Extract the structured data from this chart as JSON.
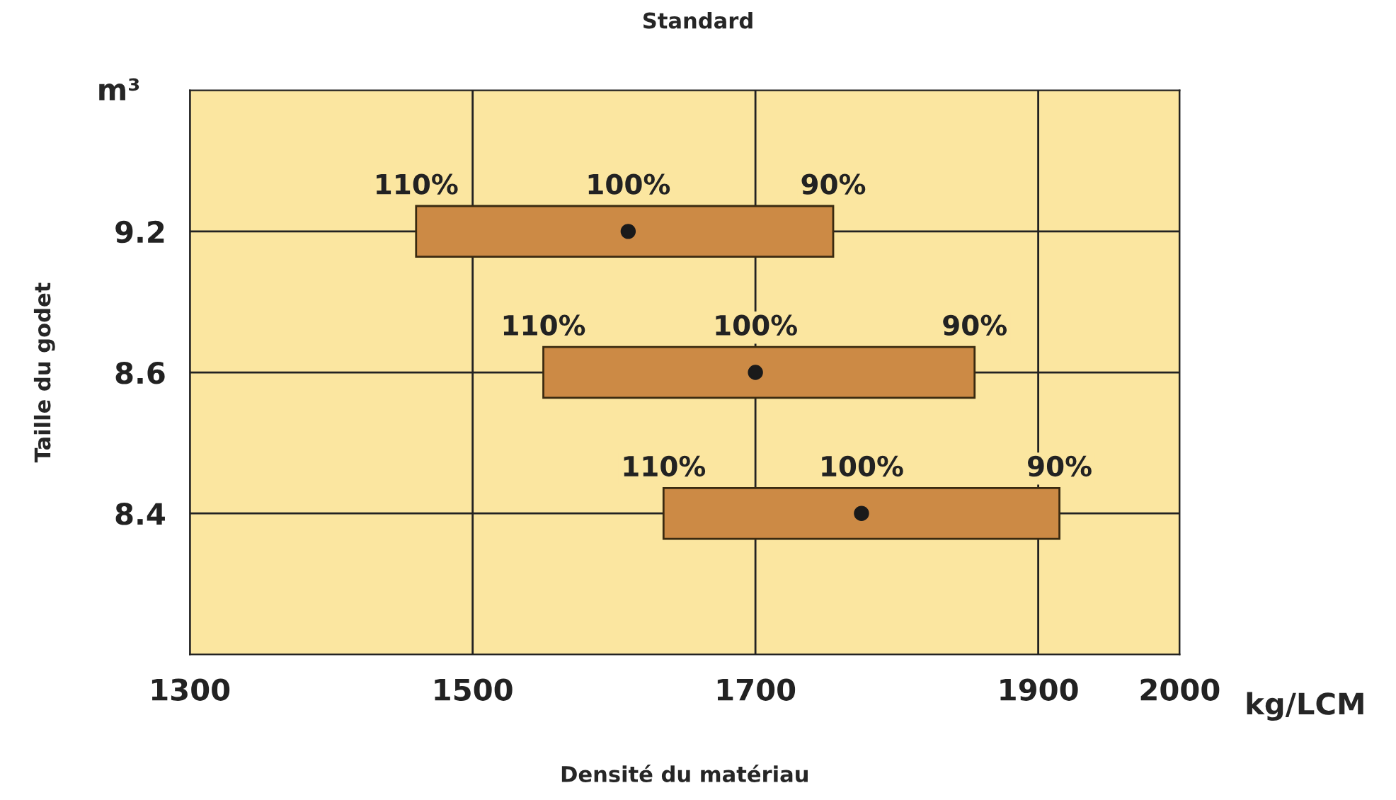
{
  "chart_data": {
    "type": "bar",
    "orientation": "horizontal",
    "title": "Standard",
    "xlabel": "Densité du matériau",
    "ylabel": "Taille du godet",
    "categories": [
      "9.2",
      "8.6",
      "8.4"
    ],
    "series": [
      {
        "color": "#cc8a45",
        "values": [
          295,
          305,
          280
        ],
        "base": [
          1460,
          1550,
          1635
        ]
      },
      {
        "type": "scatter",
        "color": "#1a1a1a",
        "values": [
          1610,
          1700,
          1775
        ]
      }
    ],
    "marker": "circle",
    "xlim": [
      1300,
      2000
    ],
    "xticks": [
      1300,
      1500,
      1700,
      1900,
      2000
    ],
    "grid": true,
    "annotations": [
      "110%",
      "100%",
      "90%",
      "110%",
      "100%",
      "90%",
      "110%",
      "100%",
      "90%",
      "m³",
      "kg/LCM"
    ]
  }
}
